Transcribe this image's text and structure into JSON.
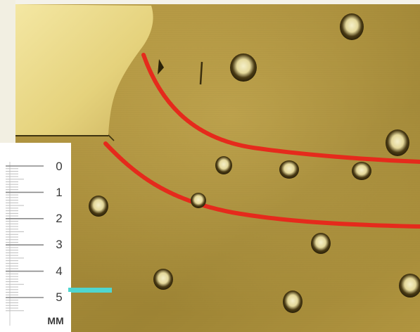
{
  "image": {
    "subject": "micrograph",
    "colors": {
      "metal_base": "#a98d3a",
      "metal_highlight": "#c9ad55",
      "coating_blob": "#eadb8c",
      "trace_red": "#e52a1c",
      "scale_marker_cyan": "#4fd6d0"
    }
  },
  "scale": {
    "labels": [
      "0",
      "1",
      "2",
      "3",
      "4",
      "5"
    ],
    "unit": "MM"
  }
}
